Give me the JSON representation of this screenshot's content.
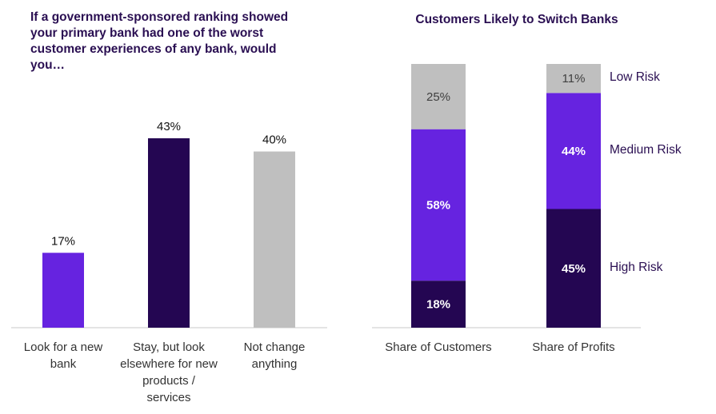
{
  "colors": {
    "light_purple": "#6623e0",
    "dark_purple": "#240652",
    "gray": "#bfbfbf",
    "axis": "#c8c8c8",
    "title": "#2a0f52"
  },
  "chart_data": [
    {
      "type": "bar",
      "title": "If a government-sponsored ranking showed your primary bank had one of the worst customer experiences of any bank, would you…",
      "categories": [
        "Look for a new bank",
        "Stay, but look elsewhere for new products / services",
        "Not change anything"
      ],
      "category_lines": [
        [
          "Look for a new",
          "bank"
        ],
        [
          "Stay, but look",
          "elsewhere for new",
          "products /",
          "services"
        ],
        [
          "Not change",
          "anything"
        ]
      ],
      "values": [
        17,
        43,
        40
      ],
      "data_labels": [
        "17%",
        "43%",
        "40%"
      ],
      "ylim": [
        0,
        45
      ],
      "xlabel": "",
      "ylabel": "",
      "grid": false,
      "bar_colors": [
        "#6623e0",
        "#240652",
        "#bfbfbf"
      ]
    },
    {
      "type": "bar",
      "stacked": true,
      "title": "Customers Likely to Switch Banks",
      "categories": [
        "Share of Customers",
        "Share of Profits"
      ],
      "series": [
        {
          "name": "High Risk",
          "values": [
            18,
            45
          ],
          "data_labels": [
            "18%",
            "45%"
          ],
          "color": "#240652",
          "label_color": "#ffffff"
        },
        {
          "name": "Medium Risk",
          "values": [
            58,
            44
          ],
          "data_labels": [
            "58%",
            "44%"
          ],
          "color": "#6623e0",
          "label_color": "#ffffff"
        },
        {
          "name": "Low Risk",
          "values": [
            25,
            11
          ],
          "data_labels": [
            "25%",
            "11%"
          ],
          "color": "#bfbfbf",
          "label_color": "#404040"
        }
      ],
      "ylim": [
        0,
        100
      ],
      "grid": false,
      "legend": "right"
    }
  ]
}
